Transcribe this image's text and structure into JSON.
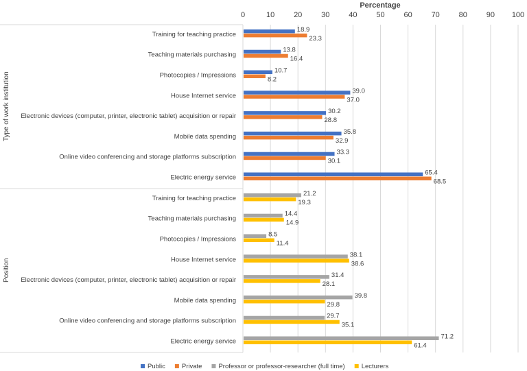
{
  "chart_data": {
    "type": "bar",
    "orientation": "horizontal",
    "xlabel": "Percentage",
    "xlim": [
      0,
      100
    ],
    "xticks": [
      0,
      10,
      20,
      30,
      40,
      50,
      60,
      70,
      80,
      90,
      100
    ],
    "grid": true,
    "legend_position": "bottom",
    "legend": [
      {
        "name": "Public",
        "color": "#4472C4"
      },
      {
        "name": "Private",
        "color": "#ED7D31"
      },
      {
        "name": "Professor or professor-researcher (full time)",
        "color": "#A5A5A5"
      },
      {
        "name": "Lecturers",
        "color": "#FFC000"
      }
    ],
    "categories": [
      "Training for teaching practice",
      "Teaching materials purchasing",
      "Photocopies / Impressions",
      "House Internet service",
      "Electronic devices (computer, printer, electronic tablet) acquisition or repair",
      "Mobile data spending",
      "Online video conferencing and storage platforms subscription",
      "Electric energy service"
    ],
    "groups": [
      {
        "label": "Type of work institution",
        "series": [
          {
            "name": "Public",
            "color": "#4472C4",
            "values": [
              18.9,
              13.8,
              10.7,
              39.0,
              30.2,
              35.8,
              33.3,
              65.4
            ]
          },
          {
            "name": "Private",
            "color": "#ED7D31",
            "values": [
              23.3,
              16.4,
              8.2,
              37.0,
              28.8,
              32.9,
              30.1,
              68.5
            ]
          }
        ]
      },
      {
        "label": "Position",
        "series": [
          {
            "name": "Professor or professor-researcher (full time)",
            "color": "#A5A5A5",
            "values": [
              21.2,
              14.4,
              8.5,
              38.1,
              31.4,
              39.8,
              29.7,
              71.2
            ]
          },
          {
            "name": "Lecturers",
            "color": "#FFC000",
            "values": [
              19.3,
              14.9,
              11.4,
              38.6,
              28.1,
              29.8,
              35.1,
              61.4
            ]
          }
        ]
      }
    ]
  }
}
